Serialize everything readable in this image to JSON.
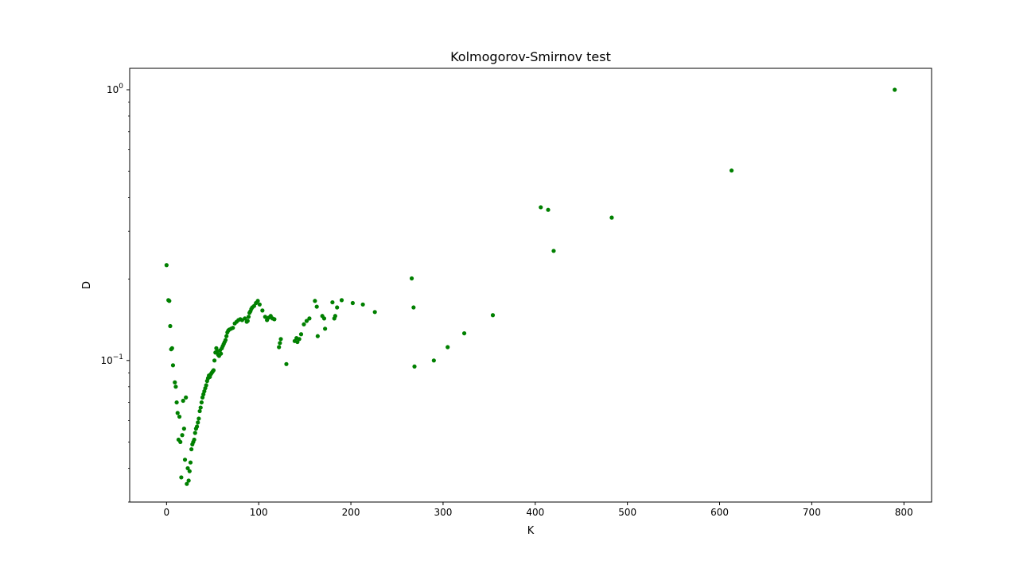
{
  "chart_data": {
    "type": "scatter",
    "title": "Kolmogorov-Smirnov test",
    "xlabel": "K",
    "ylabel": "D",
    "xscale": "linear",
    "yscale": "log",
    "xlim": [
      -40,
      830
    ],
    "ylim": [
      0.03,
      1.2
    ],
    "xticks": [
      0,
      100,
      200,
      300,
      400,
      500,
      600,
      700,
      800
    ],
    "yticks": [
      {
        "value": 0.1,
        "base": "10",
        "exp": "−1"
      },
      {
        "value": 1.0,
        "base": "10",
        "exp": "0"
      }
    ],
    "grid": false,
    "marker_color": "#008000",
    "series": [
      {
        "points": [
          [
            0,
            0.225
          ],
          [
            2,
            0.167
          ],
          [
            3,
            0.166
          ],
          [
            4,
            0.134
          ],
          [
            5,
            0.11
          ],
          [
            6,
            0.111
          ],
          [
            7,
            0.096
          ],
          [
            9,
            0.083
          ],
          [
            10,
            0.08
          ],
          [
            11,
            0.07
          ],
          [
            12,
            0.064
          ],
          [
            13,
            0.051
          ],
          [
            14,
            0.062
          ],
          [
            15,
            0.05
          ],
          [
            16,
            0.037
          ],
          [
            17,
            0.053
          ],
          [
            18,
            0.071
          ],
          [
            19,
            0.056
          ],
          [
            20,
            0.043
          ],
          [
            21,
            0.073
          ],
          [
            22,
            0.035
          ],
          [
            23,
            0.04
          ],
          [
            24,
            0.036
          ],
          [
            25,
            0.039
          ],
          [
            26,
            0.042
          ],
          [
            27,
            0.047
          ],
          [
            28,
            0.049
          ],
          [
            29,
            0.05
          ],
          [
            30,
            0.051
          ],
          [
            31,
            0.054
          ],
          [
            32,
            0.056
          ],
          [
            33,
            0.057
          ],
          [
            34,
            0.059
          ],
          [
            35,
            0.061
          ],
          [
            36,
            0.065
          ],
          [
            37,
            0.067
          ],
          [
            38,
            0.07
          ],
          [
            39,
            0.073
          ],
          [
            40,
            0.075
          ],
          [
            41,
            0.077
          ],
          [
            42,
            0.079
          ],
          [
            43,
            0.081
          ],
          [
            44,
            0.084
          ],
          [
            45,
            0.086
          ],
          [
            46,
            0.088
          ],
          [
            47,
            0.087
          ],
          [
            48,
            0.089
          ],
          [
            49,
            0.09
          ],
          [
            50,
            0.091
          ],
          [
            51,
            0.092
          ],
          [
            52,
            0.1
          ],
          [
            53,
            0.107
          ],
          [
            54,
            0.111
          ],
          [
            55,
            0.108
          ],
          [
            56,
            0.105
          ],
          [
            57,
            0.104
          ],
          [
            58,
            0.109
          ],
          [
            59,
            0.106
          ],
          [
            60,
            0.111
          ],
          [
            61,
            0.113
          ],
          [
            62,
            0.115
          ],
          [
            63,
            0.117
          ],
          [
            64,
            0.119
          ],
          [
            65,
            0.123
          ],
          [
            66,
            0.127
          ],
          [
            67,
            0.129
          ],
          [
            68,
            0.13
          ],
          [
            70,
            0.131
          ],
          [
            72,
            0.132
          ],
          [
            74,
            0.137
          ],
          [
            76,
            0.139
          ],
          [
            78,
            0.141
          ],
          [
            80,
            0.142
          ],
          [
            82,
            0.141
          ],
          [
            85,
            0.143
          ],
          [
            87,
            0.139
          ],
          [
            88,
            0.14
          ],
          [
            89,
            0.145
          ],
          [
            90,
            0.15
          ],
          [
            91,
            0.152
          ],
          [
            92,
            0.155
          ],
          [
            93,
            0.157
          ],
          [
            95,
            0.159
          ],
          [
            97,
            0.163
          ],
          [
            99,
            0.166
          ],
          [
            101,
            0.161
          ],
          [
            104,
            0.153
          ],
          [
            107,
            0.145
          ],
          [
            109,
            0.141
          ],
          [
            111,
            0.144
          ],
          [
            113,
            0.146
          ],
          [
            115,
            0.143
          ],
          [
            117,
            0.142
          ],
          [
            122,
            0.112
          ],
          [
            123,
            0.116
          ],
          [
            124,
            0.12
          ],
          [
            130,
            0.097
          ],
          [
            139,
            0.118
          ],
          [
            141,
            0.121
          ],
          [
            142,
            0.117
          ],
          [
            144,
            0.12
          ],
          [
            146,
            0.125
          ],
          [
            149,
            0.136
          ],
          [
            152,
            0.14
          ],
          [
            155,
            0.143
          ],
          [
            161,
            0.166
          ],
          [
            163,
            0.158
          ],
          [
            164,
            0.123
          ],
          [
            169,
            0.146
          ],
          [
            171,
            0.143
          ],
          [
            172,
            0.131
          ],
          [
            180,
            0.164
          ],
          [
            182,
            0.143
          ],
          [
            183,
            0.146
          ],
          [
            185,
            0.157
          ],
          [
            190,
            0.167
          ],
          [
            202,
            0.163
          ],
          [
            213,
            0.161
          ],
          [
            226,
            0.151
          ],
          [
            266,
            0.201
          ],
          [
            268,
            0.157
          ],
          [
            269,
            0.095
          ],
          [
            290,
            0.1
          ],
          [
            305,
            0.112
          ],
          [
            323,
            0.126
          ],
          [
            354,
            0.147
          ],
          [
            406,
            0.368
          ],
          [
            414,
            0.36
          ],
          [
            420,
            0.254
          ],
          [
            483,
            0.337
          ],
          [
            613,
            0.503
          ],
          [
            790,
            1.0
          ]
        ]
      }
    ]
  }
}
